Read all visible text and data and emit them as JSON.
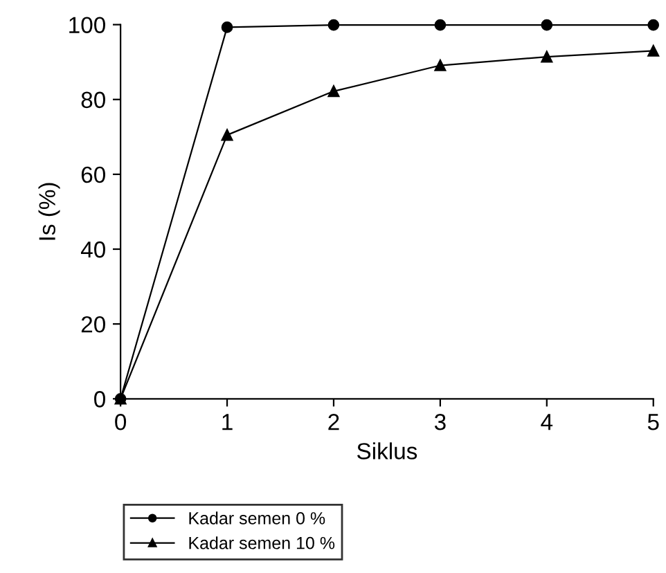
{
  "chart_data": {
    "type": "line",
    "xlabel": "Siklus",
    "ylabel": "Is (%)",
    "x": [
      0,
      1,
      2,
      3,
      4,
      5
    ],
    "series": [
      {
        "name": "Kadar semen 0 %",
        "color": "#000000",
        "marker": "circle",
        "values": [
          0,
          99.3,
          99.9,
          99.9,
          99.9,
          99.9
        ]
      },
      {
        "name": "Kadar semen 10 %",
        "color": "#000000",
        "marker": "triangle",
        "values": [
          0,
          70.5,
          82.2,
          89.1,
          91.4,
          93
        ]
      }
    ],
    "xlim": [
      0,
      5
    ],
    "xticks": [
      0,
      1,
      2,
      3,
      4,
      5
    ],
    "ylim": [
      0,
      100
    ],
    "yticks": [
      0,
      20,
      40,
      60,
      80,
      100
    ],
    "grid": false,
    "legend": "bottom",
    "line_style": "solid"
  }
}
